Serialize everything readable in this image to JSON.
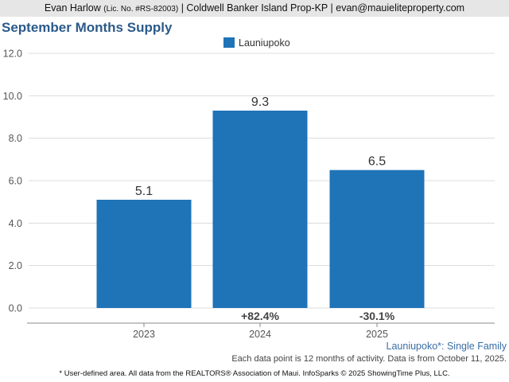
{
  "header": {
    "agent_name": "Evan Harlow",
    "license": "(Lic. No. #RS-82003)",
    "details": "| Coldwell Banker Island Prop-KP | evan@mauieliteproperty.com"
  },
  "chart_data": {
    "type": "bar",
    "title": "September Months Supply",
    "categories": [
      "2023",
      "2024",
      "2025"
    ],
    "series": [
      {
        "name": "Launiupoko",
        "values": [
          5.1,
          9.3,
          6.5
        ],
        "data_labels": [
          "5.1",
          "9.3",
          "6.5"
        ]
      }
    ],
    "change_labels": [
      "",
      "+82.4%",
      "-30.1%"
    ],
    "ylim": [
      0,
      12
    ],
    "yticks": [
      "0.0",
      "2.0",
      "4.0",
      "6.0",
      "8.0",
      "10.0",
      "12.0"
    ],
    "grid": true,
    "legend": "top-center",
    "bar_color": "#1f73b7"
  },
  "footer": {
    "subtitle": "Launiupoko*: Single Family",
    "note": "Each data point is 12 months of activity. Data is from October 11, 2025.",
    "disclaimer": "* User-defined area. All data from the REALTORS® Association of Maui. InfoSparks © 2025 ShowingTime Plus, LLC."
  }
}
